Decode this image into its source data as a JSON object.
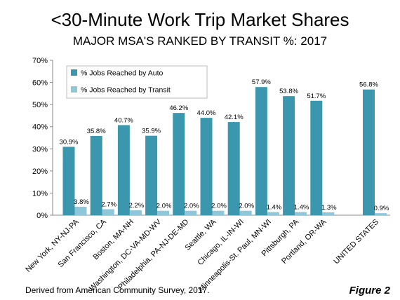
{
  "chart_data": {
    "type": "bar",
    "title": "<30-Minute Work Trip Market Shares",
    "subtitle": "MAJOR MSA'S RANKED BY TRANSIT %: 2017",
    "categories": [
      "New York, NY-NJ-PA",
      "San Francisco, CA",
      "Boston, MA-NH",
      "Washington, DC-VA-MD-WV",
      "Philadelphia, PA-NJ-DE-MD",
      "Seattle, WA",
      "Chicago, IL-IN-WI",
      "Minneapolis-St. Paul, MN-WI",
      "Pittsburgh, PA",
      "Portland, OR-WA",
      "UNITED STATES"
    ],
    "series": [
      {
        "name": "% Jobs Reached by Auto",
        "color": "#3a97ad",
        "values": [
          30.9,
          35.8,
          40.7,
          35.9,
          46.2,
          44.0,
          42.1,
          57.9,
          53.8,
          51.7,
          56.8
        ],
        "labels": [
          "30.9%",
          "35.8%",
          "40.7%",
          "35.9%",
          "46.2%",
          "44.0%",
          "42.1%",
          "57.9%",
          "53.8%",
          "51.7%",
          "56.8%"
        ]
      },
      {
        "name": "% Jobs Reached by Transit",
        "color": "#8fc7da",
        "values": [
          3.8,
          2.7,
          2.2,
          2.0,
          2.0,
          2.0,
          2.0,
          1.4,
          1.4,
          1.3,
          0.9
        ],
        "labels": [
          "3.8%",
          "2.7%",
          "2.2%",
          "2.0%",
          "2.0%",
          "2.0%",
          "2.0%",
          "1.4%",
          "1.4%",
          "1.3%",
          "0.9%"
        ]
      }
    ],
    "ylim": [
      0,
      70
    ],
    "yticks": [
      0,
      10,
      20,
      30,
      40,
      50,
      60,
      70
    ],
    "ytick_labels": [
      "0%",
      "10%",
      "20%",
      "30%",
      "40%",
      "50%",
      "60%",
      "70%"
    ],
    "grid": false,
    "legend": "top-left"
  },
  "footer": {
    "source": "Derived from American Community Survey, 2017.",
    "figure": "Figure 2"
  }
}
